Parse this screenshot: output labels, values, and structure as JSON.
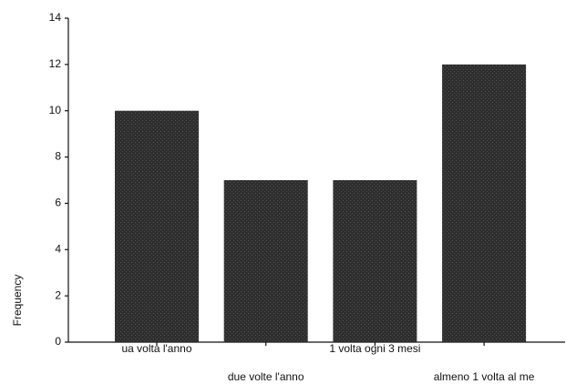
{
  "chart_data": {
    "type": "bar",
    "y_label": "Frequency",
    "categories": [
      "ua volta l'anno",
      "due volte l'anno",
      "1 volta ogni 3 mesi",
      "almeno 1 volta al me"
    ],
    "values": [
      10,
      7,
      7,
      12
    ],
    "color": "#2e2e2e",
    "ylim": [
      0,
      14
    ],
    "yticks": [
      0,
      2,
      4,
      6,
      8,
      10,
      12,
      14
    ],
    "grid": false
  }
}
